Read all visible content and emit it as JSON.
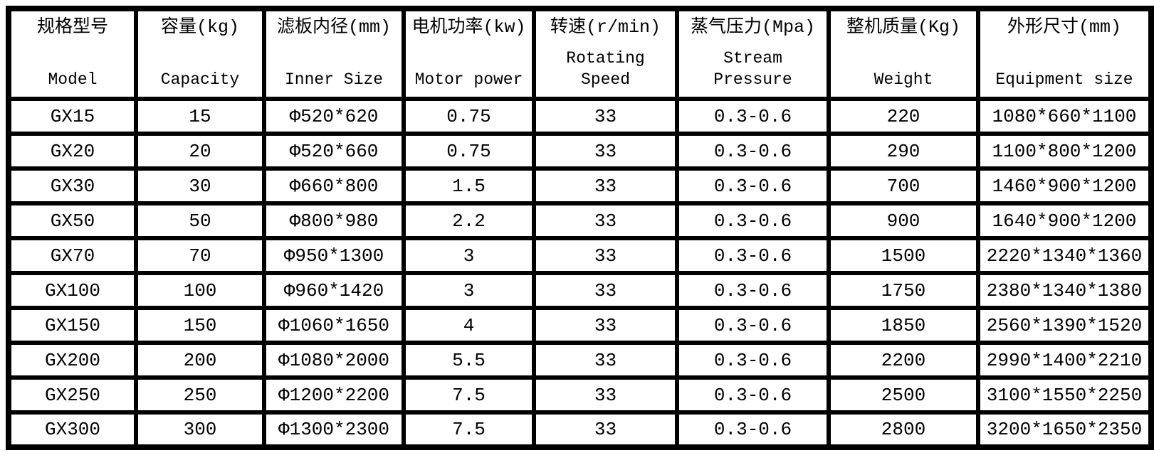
{
  "colors": {
    "border": "#000000",
    "cell_background": "#ffffff",
    "text": "#000000"
  },
  "table": {
    "columns": [
      {
        "key": "model",
        "zh": "规格型号",
        "en": "Model"
      },
      {
        "key": "capacity",
        "zh": "容量(kg)",
        "en": "Capacity"
      },
      {
        "key": "inner-size",
        "zh": "滤板内径(mm)",
        "en": "Inner Size"
      },
      {
        "key": "motor-power",
        "zh": "电机功率(kw)",
        "en": "Motor power"
      },
      {
        "key": "rotating-speed",
        "zh": "转速(r/min)",
        "en": "Rotating Speed"
      },
      {
        "key": "steam-pressure",
        "zh": "蒸气压力(Mpa)",
        "en": "Stream Pressure"
      },
      {
        "key": "weight",
        "zh": "整机质量(Kg)",
        "en": "Weight"
      },
      {
        "key": "equipment-size",
        "zh": "外形尺寸(mm)",
        "en": "Equipment size"
      }
    ],
    "rows": [
      [
        "GX15",
        "15",
        "Φ520*620",
        "0.75",
        "33",
        "0.3-0.6",
        "220",
        "1080*660*1100"
      ],
      [
        "GX20",
        "20",
        "Φ520*660",
        "0.75",
        "33",
        "0.3-0.6",
        "290",
        "1100*800*1200"
      ],
      [
        "GX30",
        "30",
        "Φ660*800",
        "1.5",
        "33",
        "0.3-0.6",
        "700",
        "1460*900*1200"
      ],
      [
        "GX50",
        "50",
        "Φ800*980",
        "2.2",
        "33",
        "0.3-0.6",
        "900",
        "1640*900*1200"
      ],
      [
        "GX70",
        "70",
        "Φ950*1300",
        "3",
        "33",
        "0.3-0.6",
        "1500",
        "2220*1340*1360"
      ],
      [
        "GX100",
        "100",
        "Φ960*1420",
        "3",
        "33",
        "0.3-0.6",
        "1750",
        "2380*1340*1380"
      ],
      [
        "GX150",
        "150",
        "Φ1060*1650",
        "4",
        "33",
        "0.3-0.6",
        "1850",
        "2560*1390*1520"
      ],
      [
        "GX200",
        "200",
        "Φ1080*2000",
        "5.5",
        "33",
        "0.3-0.6",
        "2200",
        "2990*1400*2210"
      ],
      [
        "GX250",
        "250",
        "Φ1200*2200",
        "7.5",
        "33",
        "0.3-0.6",
        "2500",
        "3100*1550*2250"
      ],
      [
        "GX300",
        "300",
        "Φ1300*2300",
        "7.5",
        "33",
        "0.3-0.6",
        "2800",
        "3200*1650*2350"
      ]
    ]
  }
}
